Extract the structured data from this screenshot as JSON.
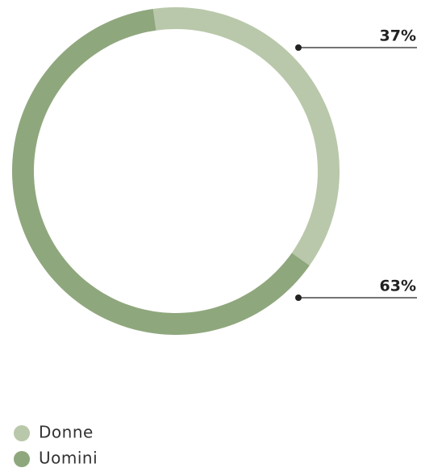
{
  "chart_data": {
    "type": "pie",
    "categories": [
      "Donne",
      "Uomini"
    ],
    "values": [
      37,
      63
    ],
    "value_labels": [
      "37%",
      "63%"
    ],
    "colors": [
      "#b9c8aa",
      "#8fa77d"
    ]
  }
}
